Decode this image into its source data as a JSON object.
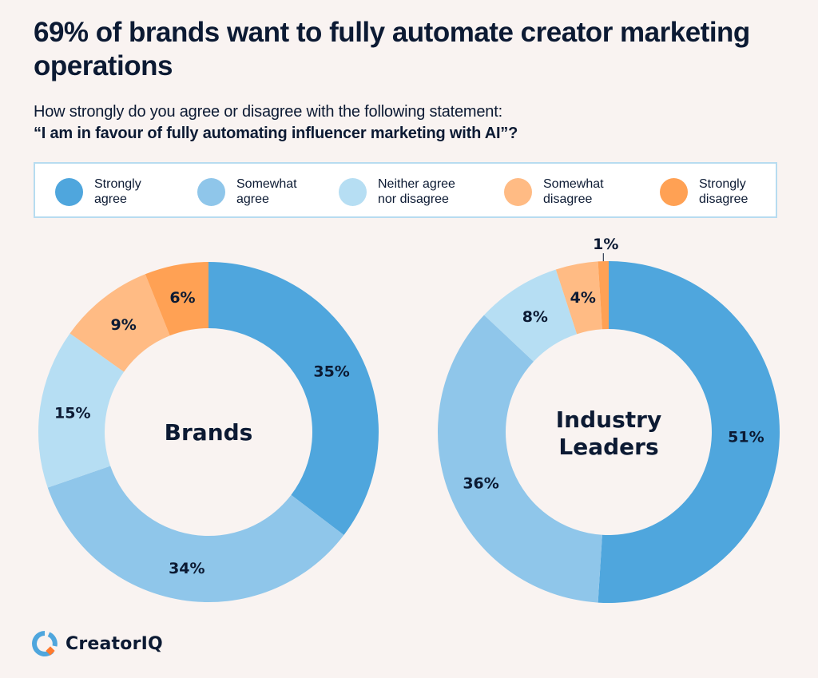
{
  "header": {
    "title": "69% of brands want to fully automate creator marketing operations",
    "subtitle": "How strongly do you agree or disagree with the following statement:",
    "question": "“I am in favour of fully automating influencer marketing with AI”?"
  },
  "legend": [
    {
      "label": "Strongly\nagree",
      "color": "#4fa6dd"
    },
    {
      "label": "Somewhat\nagree",
      "color": "#8fc6ea"
    },
    {
      "label": "Neither agree\nnor disagree",
      "color": "#b6def3"
    },
    {
      "label": "Somewhat\ndisagree",
      "color": "#ffbb84"
    },
    {
      "label": "Strongly\ndisagree",
      "color": "#ffa154"
    }
  ],
  "chart_data": [
    {
      "type": "pie",
      "variant": "donut",
      "title": "Brands",
      "categories": [
        "Strongly agree",
        "Somewhat agree",
        "Neither agree nor disagree",
        "Somewhat disagree",
        "Strongly disagree"
      ],
      "values": [
        35,
        34,
        15,
        9,
        6
      ],
      "labels": [
        "35%",
        "34%",
        "15%",
        "9%",
        "6%"
      ],
      "colors": [
        "#4fa6dd",
        "#8fc6ea",
        "#b6def3",
        "#ffbb84",
        "#ffa154"
      ],
      "start": "top",
      "direction": "clockwise"
    },
    {
      "type": "pie",
      "variant": "donut",
      "title": "Industry\nLeaders",
      "categories": [
        "Strongly agree",
        "Somewhat agree",
        "Neither agree nor disagree",
        "Somewhat disagree",
        "Strongly disagree"
      ],
      "values": [
        51,
        36,
        8,
        4,
        1
      ],
      "labels": [
        "51%",
        "36%",
        "8%",
        "4%",
        "1%"
      ],
      "colors": [
        "#4fa6dd",
        "#8fc6ea",
        "#b6def3",
        "#ffbb84",
        "#ffa154"
      ],
      "start": "top",
      "direction": "clockwise",
      "callout_labels": [
        "1%"
      ]
    }
  ],
  "footer": {
    "brand": "CreatorIQ",
    "logo_colors": {
      "ring": "#4fa6dd",
      "accent": "#ff7a2e"
    }
  }
}
